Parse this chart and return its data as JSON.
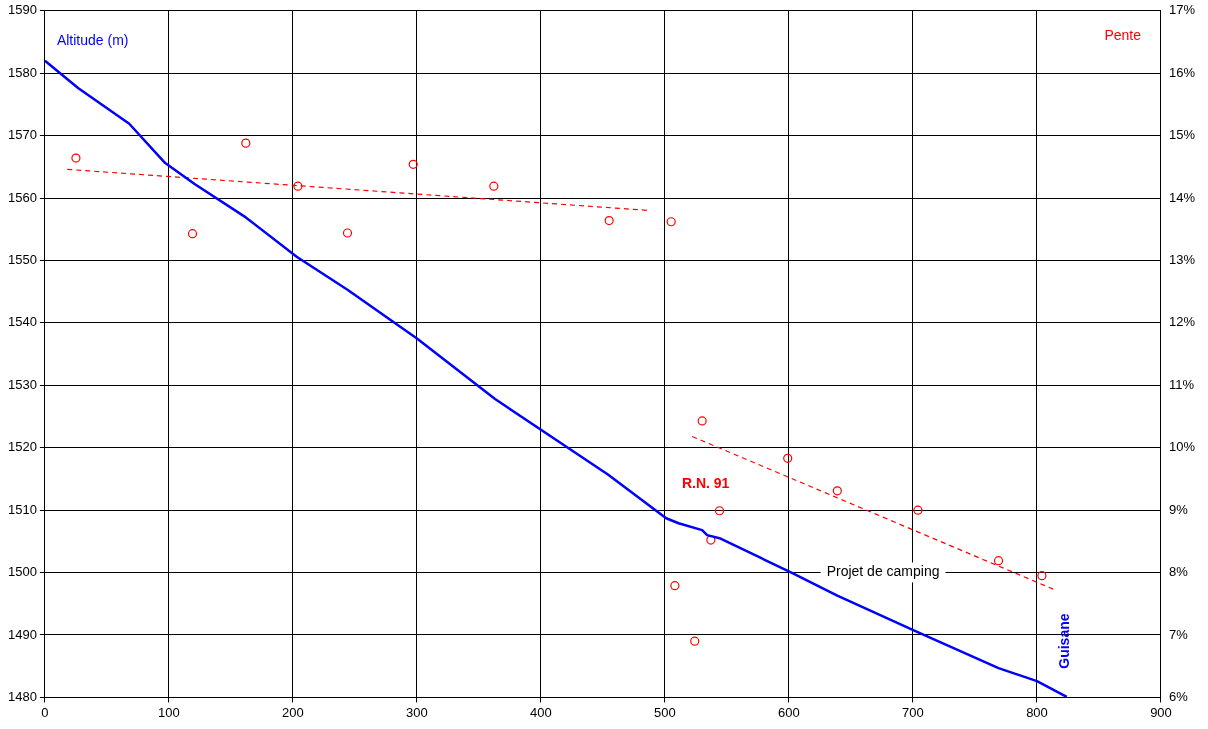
{
  "chart_data": {
    "type": "line",
    "ylabel": "Altitude (m)",
    "y2label": "Pente",
    "xlim": [
      0,
      900
    ],
    "xticks": [
      0,
      100,
      200,
      300,
      400,
      500,
      600,
      700,
      800,
      900
    ],
    "ylim": [
      1480,
      1590
    ],
    "yticks": [
      1480,
      1490,
      1500,
      1510,
      1520,
      1530,
      1540,
      1550,
      1560,
      1570,
      1580,
      1590
    ],
    "y2lim": [
      6,
      17
    ],
    "y2ticks": [
      {
        "value": 6,
        "label": "6%"
      },
      {
        "value": 7,
        "label": "7%"
      },
      {
        "value": 8,
        "label": "8%"
      },
      {
        "value": 9,
        "label": "9%"
      },
      {
        "value": 10,
        "label": "10%"
      },
      {
        "value": 11,
        "label": "11%"
      },
      {
        "value": 12,
        "label": "12%"
      },
      {
        "value": 13,
        "label": "13%"
      },
      {
        "value": 14,
        "label": "14%"
      },
      {
        "value": 15,
        "label": "15%"
      },
      {
        "value": 16,
        "label": "16%"
      },
      {
        "value": 17,
        "label": "17%"
      }
    ],
    "grid": true,
    "legend": false,
    "series": [
      {
        "color": "#0000ff",
        "marker": "none",
        "line_style": "solid",
        "x": [
          0,
          27,
          68,
          97,
          121,
          162,
          203,
          244,
          300,
          363,
          454,
          501,
          511,
          530,
          534,
          544,
          602,
          639,
          702,
          769,
          800,
          824
        ],
        "values": [
          1582,
          1577.6,
          1571.9,
          1565.6,
          1562.2,
          1556.9,
          1550.6,
          1545.3,
          1537.5,
          1527.8,
          1515.7,
          1508.7,
          1507.9,
          1506.8,
          1506,
          1505.5,
          1500,
          1496.3,
          1490.6,
          1484.7,
          1482.6,
          1480.1
        ]
      },
      {
        "type": "scatter",
        "axis": "y2",
        "color": "#ff0000",
        "marker": "circle",
        "x": [
          25,
          119,
          162,
          204,
          244,
          297,
          362,
          455,
          505,
          508,
          530,
          537,
          524,
          544,
          599,
          639,
          704,
          769,
          804
        ],
        "values": [
          14.64,
          13.43,
          14.88,
          14.19,
          13.44,
          14.54,
          14.19,
          13.64,
          13.62,
          7.79,
          10.43,
          8.52,
          6.9,
          8.99,
          9.83,
          9.31,
          9.0,
          8.19,
          7.95
        ]
      },
      {
        "type": "line",
        "axis": "y2",
        "color": "#ff0000",
        "marker": "none",
        "line_style": "dashed",
        "x": [
          18,
          488
        ],
        "values": [
          14.46,
          13.8
        ]
      },
      {
        "type": "line",
        "axis": "y2",
        "color": "#ff0000",
        "marker": "none",
        "line_style": "dashed",
        "x": [
          522,
          816
        ],
        "values": [
          10.18,
          7.71
        ]
      }
    ],
    "annotations": [
      "R.N. 91",
      "Projet de camping",
      "Guisane"
    ]
  }
}
